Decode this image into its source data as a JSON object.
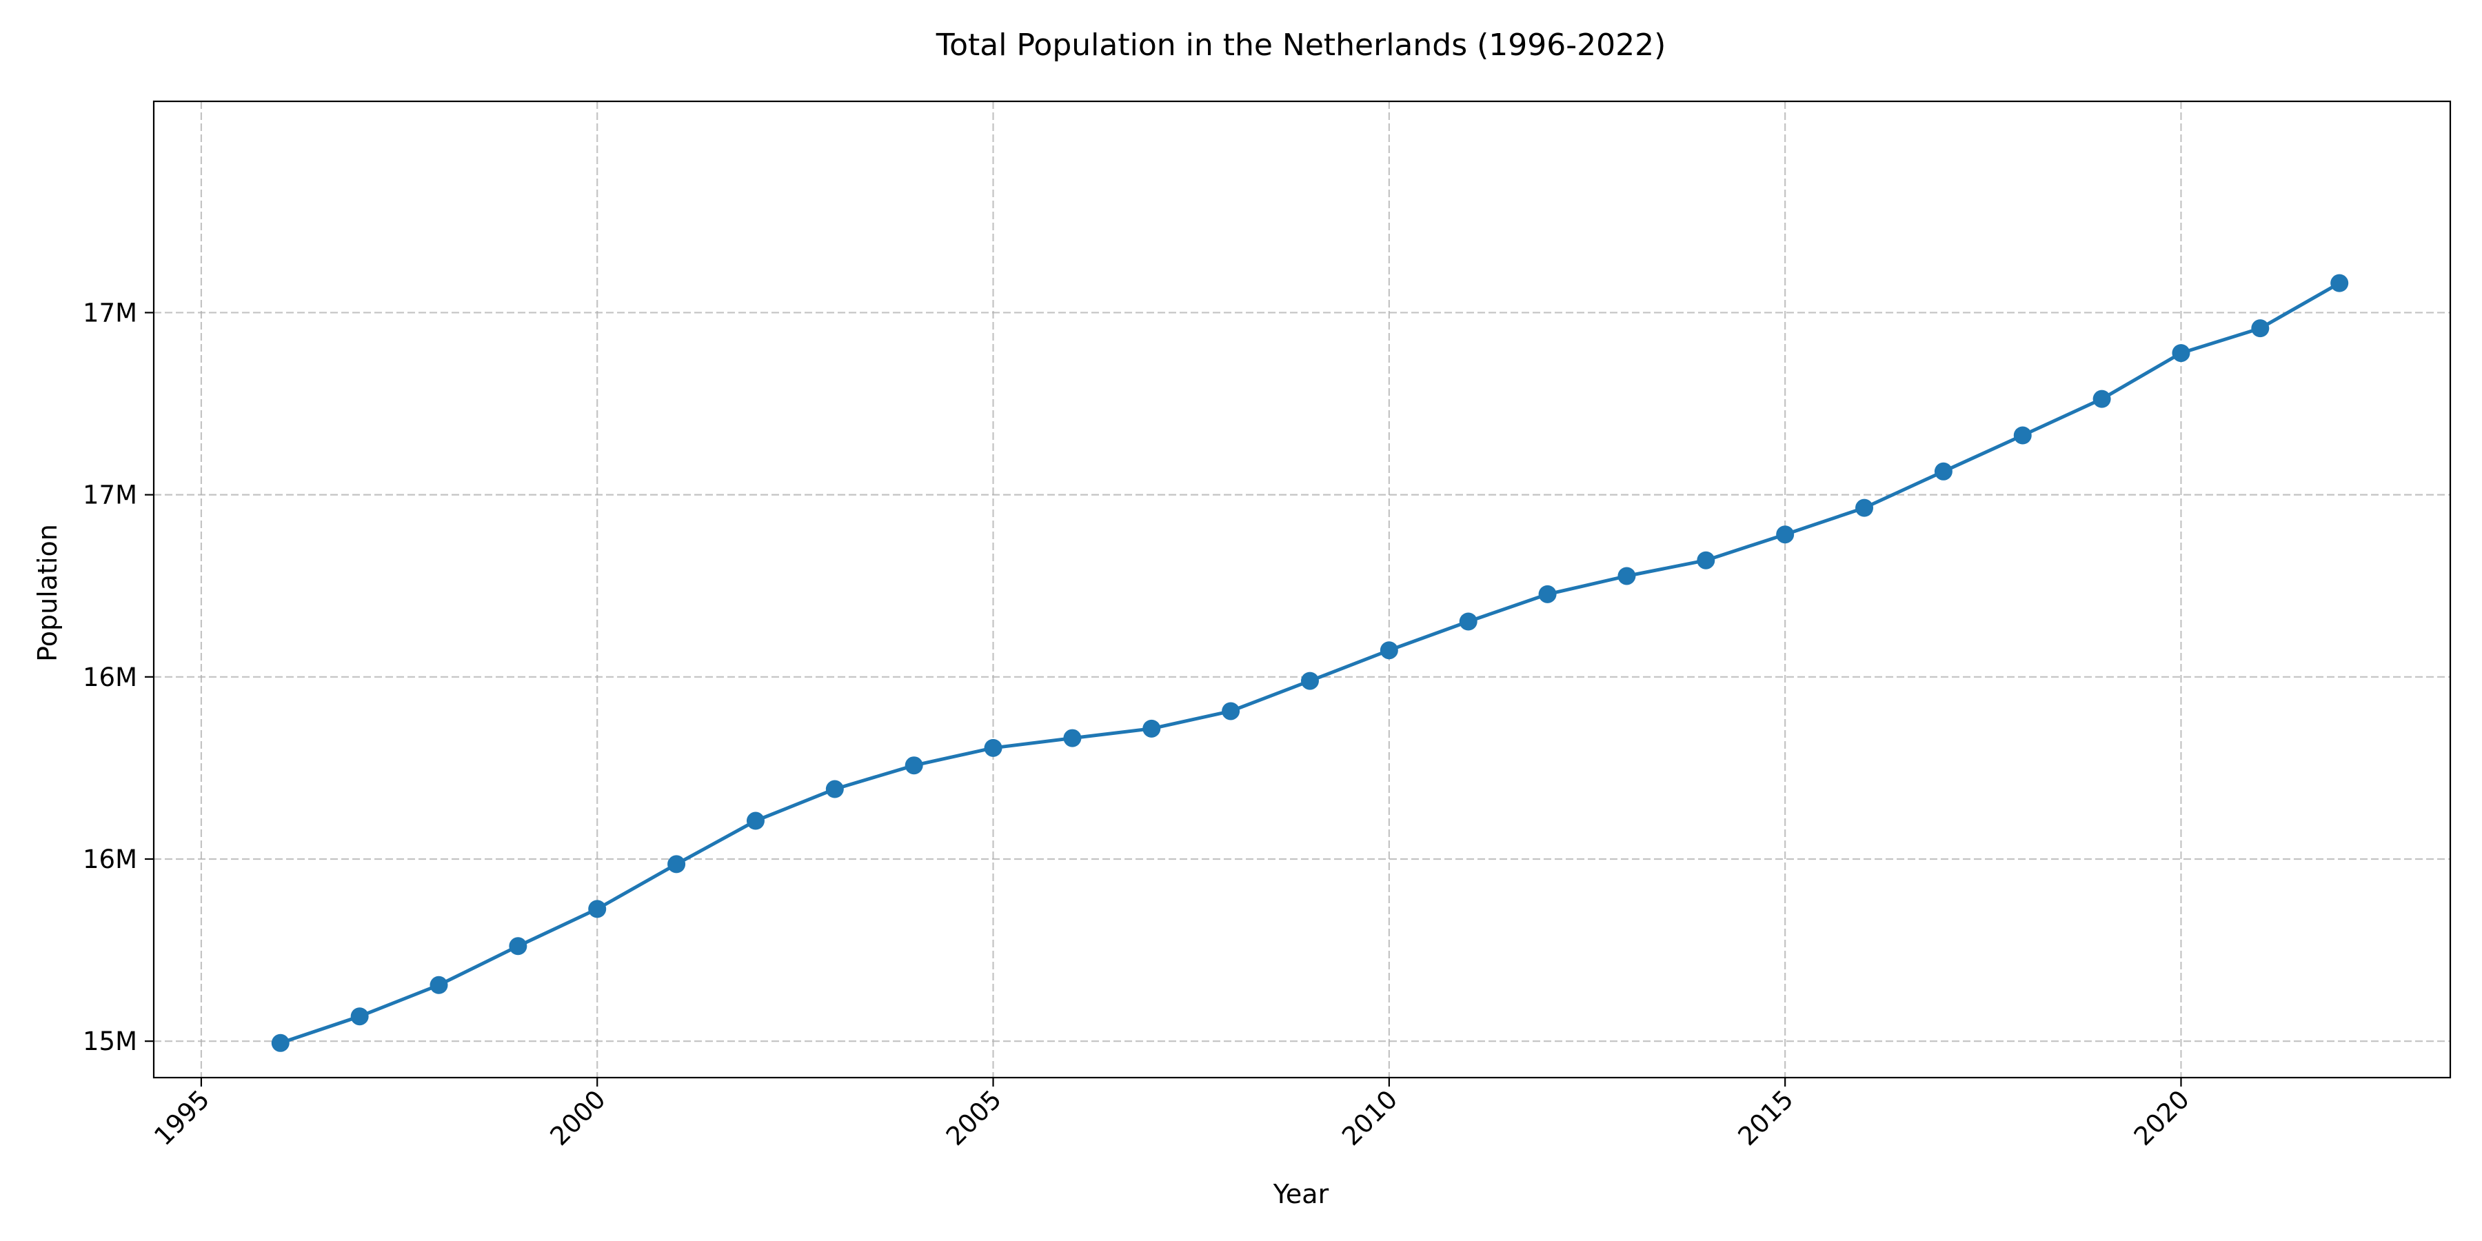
{
  "chart_data": {
    "type": "line",
    "title": "Total Population in the Netherlands (1996-2022)",
    "xlabel": "Year",
    "ylabel": "Population",
    "xlim": [
      1994.4,
      2023.4
    ],
    "ylim": [
      14900000,
      17580000
    ],
    "x_ticks": [
      1995,
      2000,
      2005,
      2010,
      2015,
      2020
    ],
    "y_ticks": [
      {
        "value": 15000000,
        "label": "15M"
      },
      {
        "value": 15500000,
        "label": "16M"
      },
      {
        "value": 16000000,
        "label": "16M"
      },
      {
        "value": 16500000,
        "label": "17M"
      },
      {
        "value": 17000000,
        "label": "17M"
      }
    ],
    "grid": true,
    "x": [
      1996,
      1997,
      1998,
      1999,
      2000,
      2001,
      2002,
      2003,
      2004,
      2005,
      2006,
      2007,
      2008,
      2009,
      2010,
      2011,
      2012,
      2013,
      2014,
      2015,
      2016,
      2017,
      2018,
      2019,
      2020,
      2021,
      2022
    ],
    "series": [
      {
        "color": "#1f77b4",
        "values": [
          14995000,
          15068000,
          15154000,
          15261000,
          15363000,
          15486000,
          15605000,
          15692000,
          15757000,
          15805000,
          15832000,
          15858000,
          15906000,
          15989000,
          16073000,
          16152000,
          16227000,
          16277000,
          16320000,
          16391000,
          16464000,
          16564000,
          16663000,
          16763000,
          16889000,
          16957000,
          17081000
        ]
      }
    ]
  }
}
